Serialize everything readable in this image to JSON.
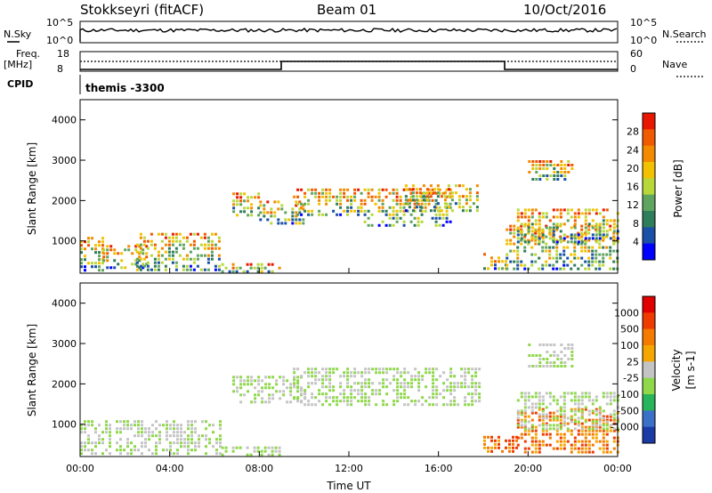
{
  "header": {
    "station": "Stokkseyri (fitACF)",
    "beam": "Beam 01",
    "date": "10/Oct/2016"
  },
  "noise_panel": {
    "left_label": "N.Sky",
    "left_ticks": [
      "10^5",
      "10^0"
    ],
    "right_label": "N.Search",
    "right_ticks": [
      "10^5",
      "10^0"
    ]
  },
  "freq_panel": {
    "left_label_1": "Freq.",
    "left_label_2": "[MHz]",
    "left_ticks": [
      "18",
      "8"
    ],
    "right_label": "Nave",
    "right_ticks": [
      "60",
      "0"
    ]
  },
  "cpid": {
    "label": "CPID",
    "value": "themis -3300"
  },
  "x_axis": {
    "ticks": [
      "00:00",
      "04:00",
      "08:00",
      "12:00",
      "16:00",
      "20:00",
      "00:00"
    ],
    "label": "Time UT"
  },
  "chart_data": [
    {
      "type": "heatmap",
      "name": "power",
      "ylabel": "Slant Range [km]",
      "yticks": [
        "1000",
        "2000",
        "3000",
        "4000"
      ],
      "ylim": [
        200,
        4500
      ],
      "xlim_hours": [
        0,
        24
      ],
      "colorbar": {
        "label": "Power [dB]",
        "ticks": [
          "4",
          "8",
          "12",
          "16",
          "20",
          "24",
          "28"
        ],
        "colors": [
          "#0000ff",
          "#1b50a8",
          "#2e7d5b",
          "#5fa45f",
          "#b8d83a",
          "#f2c200",
          "#f38a00",
          "#f05a00",
          "#e81800"
        ]
      },
      "regions": [
        {
          "t0": 0.0,
          "t1": 1.0,
          "r0": 300,
          "r1": 1100
        },
        {
          "t0": 1.0,
          "t1": 3.0,
          "r0": 300,
          "r1": 900
        },
        {
          "t0": 2.5,
          "t1": 6.3,
          "r0": 300,
          "r1": 1200
        },
        {
          "t0": 6.3,
          "t1": 9.0,
          "r0": 250,
          "r1": 450
        },
        {
          "t0": 6.8,
          "t1": 8.0,
          "r0": 1600,
          "r1": 2200
        },
        {
          "t0": 8.0,
          "t1": 10.0,
          "r0": 1400,
          "r1": 2000
        },
        {
          "t0": 9.5,
          "t1": 12.5,
          "r0": 1600,
          "r1": 2300
        },
        {
          "t0": 12.5,
          "t1": 16.5,
          "r0": 1400,
          "r1": 2300
        },
        {
          "t0": 14.5,
          "t1": 17.8,
          "r0": 1700,
          "r1": 2400
        },
        {
          "t0": 18.0,
          "t1": 19.0,
          "r0": 300,
          "r1": 700
        },
        {
          "t0": 19.0,
          "t1": 24.0,
          "r0": 300,
          "r1": 1400
        },
        {
          "t0": 19.5,
          "t1": 24.0,
          "r0": 1000,
          "r1": 1800
        },
        {
          "t0": 20.0,
          "t1": 22.0,
          "r0": 2500,
          "r1": 3000
        }
      ]
    },
    {
      "type": "heatmap",
      "name": "velocity",
      "ylabel": "Slant Range [km]",
      "yticks": [
        "1000",
        "2000",
        "3000",
        "4000"
      ],
      "ylim": [
        200,
        4500
      ],
      "xlim_hours": [
        0,
        24
      ],
      "colorbar": {
        "label_1": "Velocity",
        "label_2": "[m s-1]",
        "ticks": [
          "1000",
          "500",
          "100",
          "25",
          "-25",
          "-100",
          "-500",
          "-1000"
        ],
        "colors": [
          "#1a3aa6",
          "#3a70c8",
          "#27b45a",
          "#8ed84a",
          "#c4c4c4",
          "#f5a600",
          "#f57a00",
          "#ef3b00",
          "#e00000"
        ]
      },
      "regions": [
        {
          "t0": 0.0,
          "t1": 6.3,
          "r0": 300,
          "r1": 1100
        },
        {
          "t0": 6.3,
          "t1": 9.0,
          "r0": 250,
          "r1": 450
        },
        {
          "t0": 6.8,
          "t1": 10.0,
          "r0": 1500,
          "r1": 2200
        },
        {
          "t0": 9.5,
          "t1": 17.8,
          "r0": 1500,
          "r1": 2400
        },
        {
          "t0": 18.0,
          "t1": 19.5,
          "r0": 300,
          "r1": 800
        },
        {
          "t0": 19.5,
          "t1": 24.0,
          "r0": 300,
          "r1": 1400
        },
        {
          "t0": 19.5,
          "t1": 24.0,
          "r0": 900,
          "r1": 1800
        },
        {
          "t0": 20.0,
          "t1": 22.0,
          "r0": 2400,
          "r1": 3000
        }
      ]
    }
  ]
}
